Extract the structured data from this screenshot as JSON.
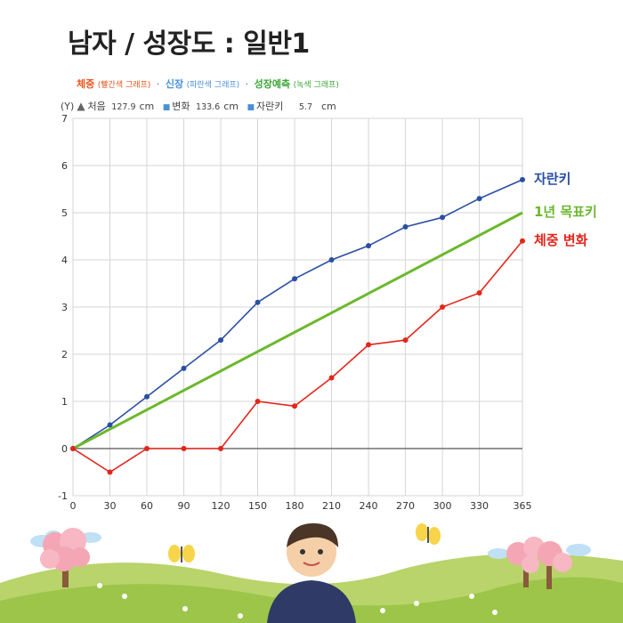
{
  "page": {
    "title": "남자 / 성장도 : 일반1",
    "legend": {
      "weight": "체중",
      "weight_note": "(빨간색 그래프)",
      "height": "신장",
      "height_note": "(파란색 그래프)",
      "growth": "성장예측",
      "growth_note": "(녹색 그래프)",
      "separator": "·"
    },
    "info": {
      "y_label": "(Y)",
      "start_label": "처음",
      "start_value": "127.9",
      "start_unit": "cm",
      "change_label": "변화",
      "change_value": "133.6",
      "change_unit": "cm",
      "grown_label": "자란키",
      "grown_value": "5.7",
      "grown_unit": "cm"
    }
  },
  "colors": {
    "height": "#2b4fa3",
    "target": "#6cb82c",
    "weight": "#e3261b",
    "weight_legend": "#e8541e",
    "height_legend": "#4a90d9",
    "growth_legend": "#3aa635"
  },
  "chart_data": {
    "type": "line",
    "x": [
      0,
      30,
      60,
      90,
      120,
      150,
      180,
      210,
      240,
      270,
      300,
      330,
      365
    ],
    "x_ticks": [
      "0",
      "30",
      "60",
      "90",
      "120",
      "150",
      "180",
      "210",
      "240",
      "270",
      "300",
      "330",
      "365"
    ],
    "y_ticks": [
      "-1",
      "0",
      "1",
      "2",
      "3",
      "4",
      "5",
      "6",
      "7"
    ],
    "xlim": [
      0,
      365
    ],
    "ylim": [
      -1,
      7
    ],
    "grid": true,
    "legend_position": "right",
    "series": [
      {
        "name": "자란키",
        "color": "#2b4fa3",
        "markers": true,
        "values": [
          0,
          0.5,
          1.1,
          1.7,
          2.3,
          3.1,
          3.6,
          4.0,
          4.3,
          4.7,
          4.9,
          5.3,
          5.7
        ]
      },
      {
        "name": "1년 목표키",
        "color": "#6cb82c",
        "markers": false,
        "x": [
          0,
          365
        ],
        "values": [
          0,
          5.0
        ]
      },
      {
        "name": "체중 변화",
        "color": "#e3261b",
        "markers": true,
        "values": [
          0,
          -0.5,
          0,
          0,
          0,
          1.0,
          0.9,
          1.5,
          2.2,
          2.3,
          3.0,
          3.3,
          4.4
        ]
      }
    ]
  }
}
